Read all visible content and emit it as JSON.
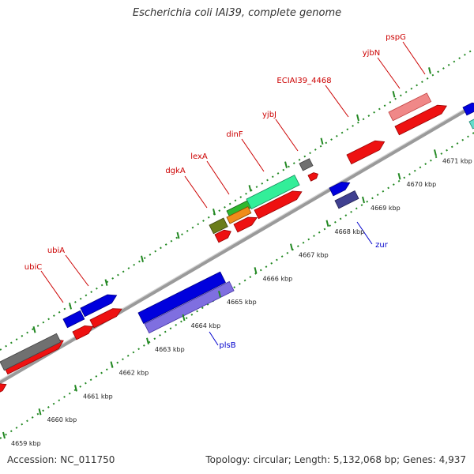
{
  "title": "Escherichia coli IAI39, complete genome",
  "footer": {
    "accession": "Accession: NC_011750",
    "summary": "Topology: circular; Length: 5,132,068 bp; Genes: 4,937"
  },
  "colors": {
    "forward_label": "#cc0000",
    "reverse_label": "#0000cc",
    "backbone": "#888888",
    "tick_green": "#228822"
  },
  "ticks": [
    {
      "label": "4659 kbp"
    },
    {
      "label": "4660 kbp"
    },
    {
      "label": "4661 kbp"
    },
    {
      "label": "4662 kbp"
    },
    {
      "label": "4663 kbp"
    },
    {
      "label": "4664 kbp"
    },
    {
      "label": "4665 kbp"
    },
    {
      "label": "4666 kbp"
    },
    {
      "label": "4667 kbp"
    },
    {
      "label": "4668 kbp"
    },
    {
      "label": "4669 kbp"
    },
    {
      "label": "4670 kbp"
    },
    {
      "label": "4671 kbp"
    }
  ],
  "gene_labels": [
    {
      "name": "ubiC",
      "strand": "forward"
    },
    {
      "name": "ubiA",
      "strand": "forward"
    },
    {
      "name": "dgkA",
      "strand": "forward"
    },
    {
      "name": "lexA",
      "strand": "forward"
    },
    {
      "name": "dinF",
      "strand": "forward"
    },
    {
      "name": "yjbJ",
      "strand": "forward"
    },
    {
      "name": "ECIAI39_4468",
      "strand": "forward"
    },
    {
      "name": "yjbN",
      "strand": "forward"
    },
    {
      "name": "pspG",
      "strand": "forward"
    },
    {
      "name": "plsB",
      "strand": "reverse"
    },
    {
      "name": "zur",
      "strand": "reverse"
    }
  ]
}
